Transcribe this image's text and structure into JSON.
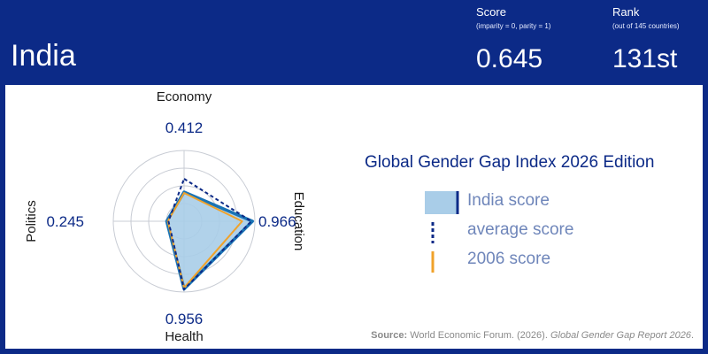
{
  "header": {
    "country": "India",
    "score_title": "Score",
    "score_subtitle": "(imparity = 0, parity = 1)",
    "score_value": "0.645",
    "rank_title": "Rank",
    "rank_subtitle": "(out of 145 countries)",
    "rank_value": "131st"
  },
  "chart_title": "Global Gender Gap Index 2026 Edition",
  "legend": {
    "india": "India score",
    "average": "average score",
    "y2006": "2006 score"
  },
  "source": {
    "prefix": "Source:",
    "text": "World Economic Forum. (2026).",
    "title": "Global Gender Gap Report 2026"
  },
  "colors": {
    "header_bg": "#0c2a87",
    "india_fill": "#a9cde8",
    "india_stroke": "#1a74b5",
    "average_stroke": "#0c2a87",
    "y2006_stroke": "#f0a22a"
  },
  "chart_data": {
    "type": "radar",
    "axes": [
      "Economy",
      "Education",
      "Health",
      "Politics"
    ],
    "range": [
      0,
      1
    ],
    "series": [
      {
        "name": "India score",
        "values": [
          0.412,
          0.966,
          0.956,
          0.245
        ]
      },
      {
        "name": "average score",
        "values": [
          0.6,
          0.95,
          0.96,
          0.22
        ]
      },
      {
        "name": "2006 score",
        "values": [
          0.4,
          0.82,
          0.94,
          0.23
        ]
      }
    ],
    "value_labels": [
      "0.412",
      "0.966",
      "0.956",
      "0.245"
    ]
  }
}
